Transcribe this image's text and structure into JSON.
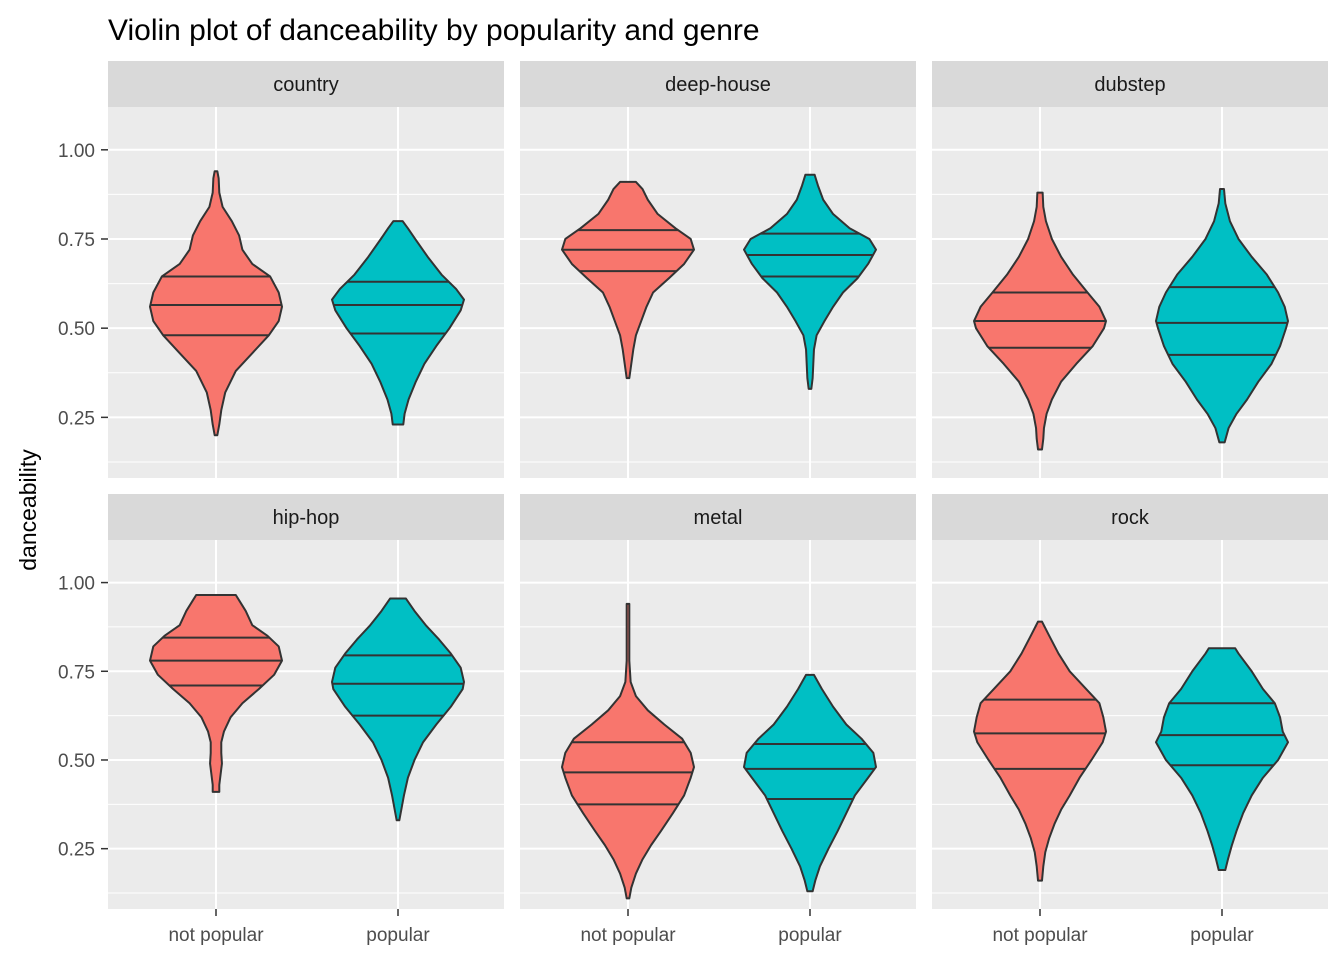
{
  "chart_data": {
    "type": "violin",
    "title": "Violin plot of danceability by popularity and genre",
    "xlabel": "",
    "ylabel": "danceability",
    "categories": [
      "not popular",
      "popular"
    ],
    "y_ticks": [
      0.25,
      0.5,
      0.75,
      1.0
    ],
    "y_tick_labels": [
      "0.25",
      "0.50",
      "0.75",
      "1.00"
    ],
    "ylim": [
      0.08,
      1.12
    ],
    "colors": {
      "not popular": "#F8766D",
      "popular": "#00BFC4"
    },
    "draw_quantiles": [
      0.25,
      0.5,
      0.75
    ],
    "panels": [
      {
        "label": "country",
        "violins": [
          {
            "category": "not popular",
            "min": 0.2,
            "max": 0.94,
            "quantiles": [
              0.48,
              0.565,
              0.645
            ],
            "profile": [
              [
                0.2,
                0.02
              ],
              [
                0.23,
                0.05
              ],
              [
                0.27,
                0.08
              ],
              [
                0.32,
                0.14
              ],
              [
                0.38,
                0.3
              ],
              [
                0.43,
                0.55
              ],
              [
                0.48,
                0.8
              ],
              [
                0.52,
                0.95
              ],
              [
                0.56,
                1.0
              ],
              [
                0.6,
                0.95
              ],
              [
                0.645,
                0.82
              ],
              [
                0.68,
                0.55
              ],
              [
                0.72,
                0.4
              ],
              [
                0.76,
                0.35
              ],
              [
                0.8,
                0.24
              ],
              [
                0.84,
                0.1
              ],
              [
                0.88,
                0.05
              ],
              [
                0.92,
                0.04
              ],
              [
                0.94,
                0.02
              ]
            ]
          },
          {
            "category": "popular",
            "min": 0.23,
            "max": 0.8,
            "quantiles": [
              0.485,
              0.565,
              0.63
            ],
            "profile": [
              [
                0.23,
                0.08
              ],
              [
                0.26,
                0.1
              ],
              [
                0.3,
                0.16
              ],
              [
                0.35,
                0.27
              ],
              [
                0.4,
                0.4
              ],
              [
                0.45,
                0.58
              ],
              [
                0.5,
                0.78
              ],
              [
                0.55,
                0.95
              ],
              [
                0.58,
                1.0
              ],
              [
                0.61,
                0.88
              ],
              [
                0.65,
                0.66
              ],
              [
                0.7,
                0.45
              ],
              [
                0.75,
                0.26
              ],
              [
                0.78,
                0.15
              ],
              [
                0.8,
                0.07
              ]
            ]
          }
        ]
      },
      {
        "label": "deep-house",
        "violins": [
          {
            "category": "not popular",
            "min": 0.36,
            "max": 0.91,
            "quantiles": [
              0.66,
              0.72,
              0.775
            ],
            "profile": [
              [
                0.36,
                0.02
              ],
              [
                0.4,
                0.05
              ],
              [
                0.44,
                0.08
              ],
              [
                0.48,
                0.12
              ],
              [
                0.52,
                0.2
              ],
              [
                0.56,
                0.28
              ],
              [
                0.6,
                0.38
              ],
              [
                0.64,
                0.62
              ],
              [
                0.68,
                0.85
              ],
              [
                0.72,
                1.0
              ],
              [
                0.75,
                0.95
              ],
              [
                0.78,
                0.72
              ],
              [
                0.82,
                0.45
              ],
              [
                0.86,
                0.3
              ],
              [
                0.89,
                0.22
              ],
              [
                0.91,
                0.12
              ]
            ]
          },
          {
            "category": "popular",
            "min": 0.33,
            "max": 0.93,
            "quantiles": [
              0.645,
              0.705,
              0.765
            ],
            "profile": [
              [
                0.33,
                0.02
              ],
              [
                0.36,
                0.04
              ],
              [
                0.4,
                0.05
              ],
              [
                0.44,
                0.06
              ],
              [
                0.48,
                0.1
              ],
              [
                0.52,
                0.22
              ],
              [
                0.56,
                0.35
              ],
              [
                0.6,
                0.5
              ],
              [
                0.64,
                0.72
              ],
              [
                0.68,
                0.88
              ],
              [
                0.72,
                1.0
              ],
              [
                0.75,
                0.9
              ],
              [
                0.78,
                0.6
              ],
              [
                0.82,
                0.35
              ],
              [
                0.86,
                0.2
              ],
              [
                0.9,
                0.12
              ],
              [
                0.93,
                0.07
              ]
            ]
          }
        ]
      },
      {
        "label": "dubstep",
        "violins": [
          {
            "category": "not popular",
            "min": 0.16,
            "max": 0.88,
            "quantiles": [
              0.445,
              0.52,
              0.6
            ],
            "profile": [
              [
                0.16,
                0.03
              ],
              [
                0.19,
                0.05
              ],
              [
                0.22,
                0.06
              ],
              [
                0.26,
                0.1
              ],
              [
                0.3,
                0.18
              ],
              [
                0.35,
                0.32
              ],
              [
                0.4,
                0.55
              ],
              [
                0.45,
                0.8
              ],
              [
                0.5,
                0.97
              ],
              [
                0.52,
                1.0
              ],
              [
                0.56,
                0.9
              ],
              [
                0.6,
                0.72
              ],
              [
                0.65,
                0.5
              ],
              [
                0.7,
                0.32
              ],
              [
                0.75,
                0.18
              ],
              [
                0.8,
                0.09
              ],
              [
                0.84,
                0.05
              ],
              [
                0.88,
                0.04
              ]
            ]
          },
          {
            "category": "popular",
            "min": 0.18,
            "max": 0.89,
            "quantiles": [
              0.425,
              0.515,
              0.615
            ],
            "profile": [
              [
                0.18,
                0.04
              ],
              [
                0.22,
                0.1
              ],
              [
                0.26,
                0.22
              ],
              [
                0.3,
                0.38
              ],
              [
                0.35,
                0.55
              ],
              [
                0.4,
                0.75
              ],
              [
                0.45,
                0.88
              ],
              [
                0.5,
                0.97
              ],
              [
                0.52,
                1.0
              ],
              [
                0.56,
                0.95
              ],
              [
                0.6,
                0.85
              ],
              [
                0.65,
                0.68
              ],
              [
                0.7,
                0.45
              ],
              [
                0.75,
                0.25
              ],
              [
                0.8,
                0.12
              ],
              [
                0.85,
                0.05
              ],
              [
                0.89,
                0.03
              ]
            ]
          }
        ]
      },
      {
        "label": "hip-hop",
        "violins": [
          {
            "category": "not popular",
            "min": 0.41,
            "max": 0.965,
            "quantiles": [
              0.71,
              0.78,
              0.845
            ],
            "profile": [
              [
                0.41,
                0.05
              ],
              [
                0.43,
                0.05
              ],
              [
                0.46,
                0.07
              ],
              [
                0.49,
                0.09
              ],
              [
                0.52,
                0.08
              ],
              [
                0.55,
                0.08
              ],
              [
                0.58,
                0.12
              ],
              [
                0.62,
                0.22
              ],
              [
                0.66,
                0.4
              ],
              [
                0.7,
                0.65
              ],
              [
                0.74,
                0.88
              ],
              [
                0.78,
                1.0
              ],
              [
                0.82,
                0.95
              ],
              [
                0.85,
                0.78
              ],
              [
                0.88,
                0.55
              ],
              [
                0.92,
                0.45
              ],
              [
                0.95,
                0.35
              ],
              [
                0.965,
                0.3
              ]
            ]
          },
          {
            "category": "popular",
            "min": 0.33,
            "max": 0.955,
            "quantiles": [
              0.625,
              0.715,
              0.795
            ],
            "profile": [
              [
                0.33,
                0.02
              ],
              [
                0.36,
                0.05
              ],
              [
                0.4,
                0.09
              ],
              [
                0.45,
                0.15
              ],
              [
                0.5,
                0.25
              ],
              [
                0.55,
                0.38
              ],
              [
                0.6,
                0.58
              ],
              [
                0.65,
                0.8
              ],
              [
                0.7,
                0.98
              ],
              [
                0.72,
                1.0
              ],
              [
                0.76,
                0.95
              ],
              [
                0.8,
                0.8
              ],
              [
                0.84,
                0.62
              ],
              [
                0.88,
                0.42
              ],
              [
                0.92,
                0.25
              ],
              [
                0.955,
                0.12
              ]
            ]
          }
        ]
      },
      {
        "label": "metal",
        "violins": [
          {
            "category": "not popular",
            "min": 0.11,
            "max": 0.94,
            "quantiles": [
              0.375,
              0.465,
              0.55
            ],
            "profile": [
              [
                0.11,
                0.02
              ],
              [
                0.14,
                0.05
              ],
              [
                0.18,
                0.12
              ],
              [
                0.22,
                0.22
              ],
              [
                0.26,
                0.35
              ],
              [
                0.3,
                0.5
              ],
              [
                0.35,
                0.68
              ],
              [
                0.4,
                0.85
              ],
              [
                0.45,
                0.95
              ],
              [
                0.48,
                1.0
              ],
              [
                0.52,
                0.95
              ],
              [
                0.56,
                0.82
              ],
              [
                0.6,
                0.55
              ],
              [
                0.64,
                0.3
              ],
              [
                0.68,
                0.12
              ],
              [
                0.72,
                0.04
              ],
              [
                0.78,
                0.02
              ],
              [
                0.85,
                0.02
              ],
              [
                0.94,
                0.02
              ]
            ]
          },
          {
            "category": "popular",
            "min": 0.13,
            "max": 0.74,
            "quantiles": [
              0.39,
              0.475,
              0.545
            ],
            "profile": [
              [
                0.13,
                0.04
              ],
              [
                0.16,
                0.08
              ],
              [
                0.2,
                0.15
              ],
              [
                0.25,
                0.28
              ],
              [
                0.3,
                0.42
              ],
              [
                0.35,
                0.55
              ],
              [
                0.4,
                0.68
              ],
              [
                0.45,
                0.88
              ],
              [
                0.48,
                1.0
              ],
              [
                0.52,
                0.96
              ],
              [
                0.56,
                0.78
              ],
              [
                0.6,
                0.55
              ],
              [
                0.65,
                0.35
              ],
              [
                0.7,
                0.18
              ],
              [
                0.74,
                0.06
              ]
            ]
          }
        ]
      },
      {
        "label": "rock",
        "violins": [
          {
            "category": "not popular",
            "min": 0.16,
            "max": 0.89,
            "quantiles": [
              0.475,
              0.575,
              0.67
            ],
            "profile": [
              [
                0.16,
                0.03
              ],
              [
                0.2,
                0.05
              ],
              [
                0.24,
                0.08
              ],
              [
                0.28,
                0.14
              ],
              [
                0.32,
                0.22
              ],
              [
                0.36,
                0.32
              ],
              [
                0.4,
                0.45
              ],
              [
                0.45,
                0.6
              ],
              [
                0.5,
                0.78
              ],
              [
                0.55,
                0.95
              ],
              [
                0.58,
                1.0
              ],
              [
                0.62,
                0.96
              ],
              [
                0.66,
                0.9
              ],
              [
                0.7,
                0.7
              ],
              [
                0.75,
                0.45
              ],
              [
                0.8,
                0.28
              ],
              [
                0.85,
                0.14
              ],
              [
                0.89,
                0.03
              ]
            ]
          },
          {
            "category": "popular",
            "min": 0.19,
            "max": 0.815,
            "quantiles": [
              0.485,
              0.57,
              0.66
            ],
            "profile": [
              [
                0.19,
                0.05
              ],
              [
                0.22,
                0.09
              ],
              [
                0.26,
                0.15
              ],
              [
                0.3,
                0.22
              ],
              [
                0.35,
                0.32
              ],
              [
                0.4,
                0.45
              ],
              [
                0.45,
                0.62
              ],
              [
                0.5,
                0.85
              ],
              [
                0.55,
                1.0
              ],
              [
                0.58,
                0.92
              ],
              [
                0.62,
                0.88
              ],
              [
                0.66,
                0.8
              ],
              [
                0.7,
                0.62
              ],
              [
                0.75,
                0.45
              ],
              [
                0.8,
                0.25
              ],
              [
                0.815,
                0.2
              ]
            ]
          }
        ]
      }
    ]
  }
}
